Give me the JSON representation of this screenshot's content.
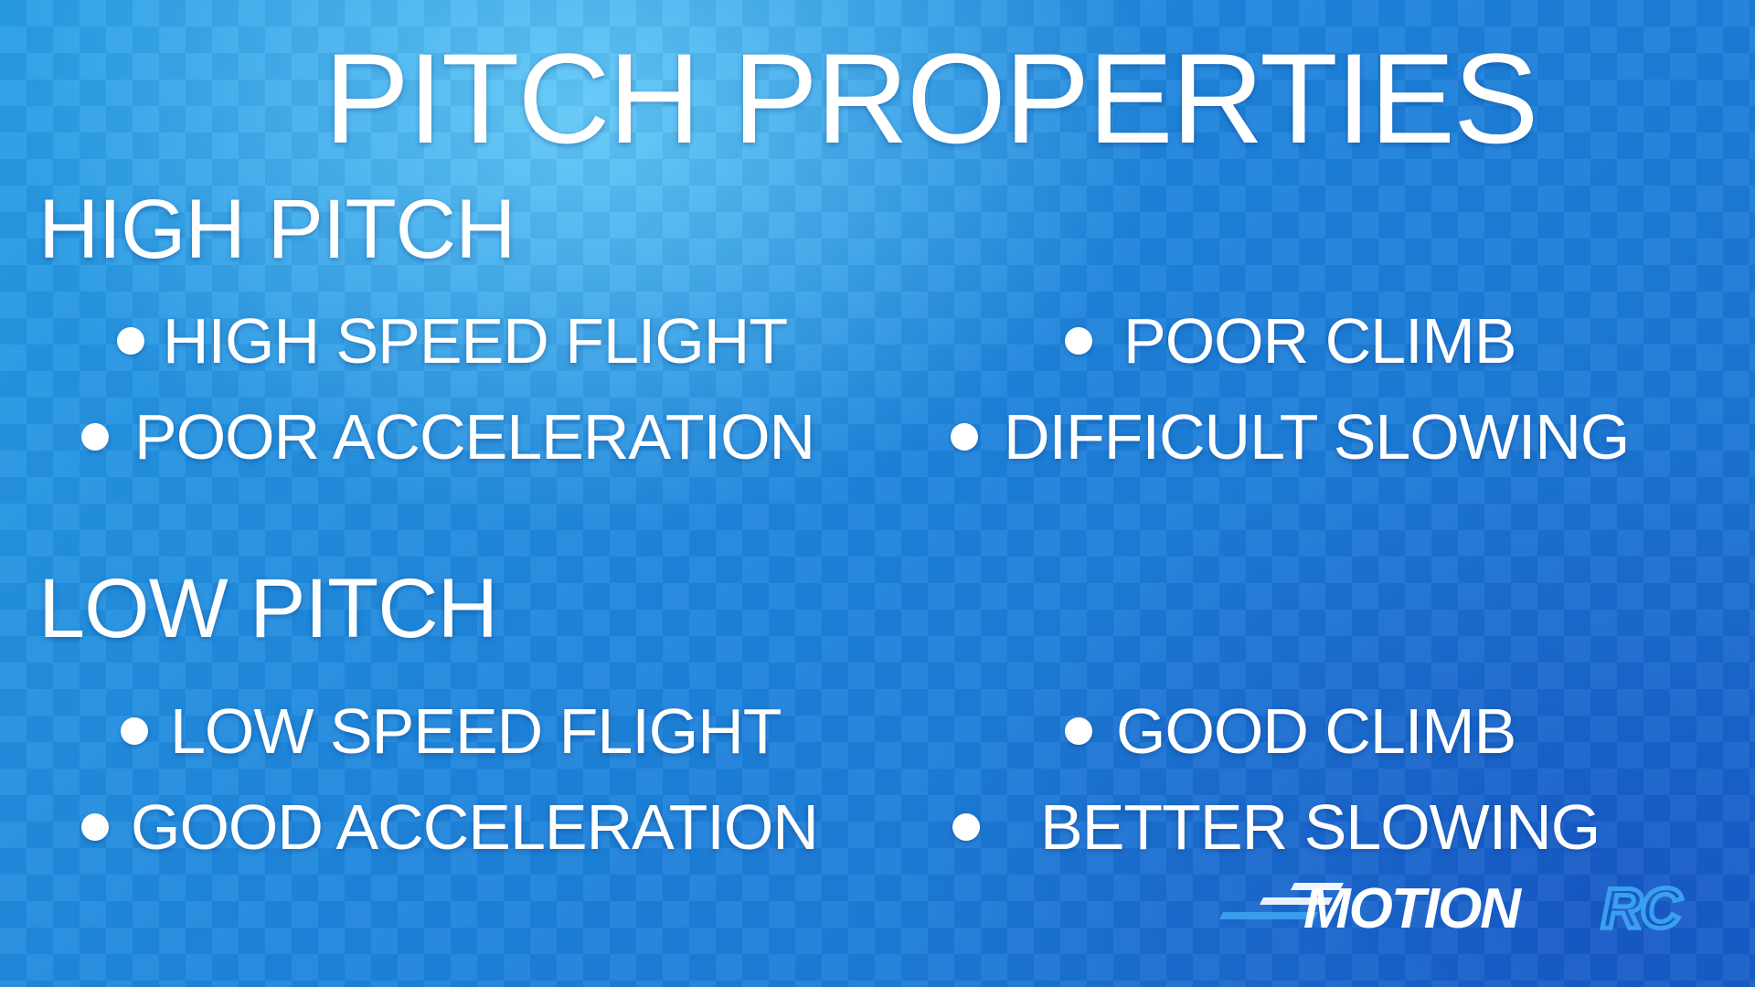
{
  "title": "PITCH PROPERTIES",
  "high_pitch": {
    "heading": "HIGH PITCH",
    "items": [
      "HIGH SPEED FLIGHT",
      "POOR CLIMB",
      "POOR ACCELERATION",
      "DIFFICULT SLOWING"
    ]
  },
  "low_pitch": {
    "heading": "LOW PITCH",
    "items": [
      "LOW SPEED FLIGHT",
      "GOOD CLIMB",
      "GOOD ACCELERATION",
      "BETTER SLOWING"
    ]
  },
  "logo": {
    "text_main": "MOTION",
    "text_accent": "RC",
    "icon": "motionrc-logo"
  },
  "colors": {
    "background_light": "#7fdcff",
    "background_mid": "#1f86dc",
    "background_dark": "#1a6fd0",
    "text": "#ffffff",
    "logo_accent": "#3aa0ee"
  }
}
